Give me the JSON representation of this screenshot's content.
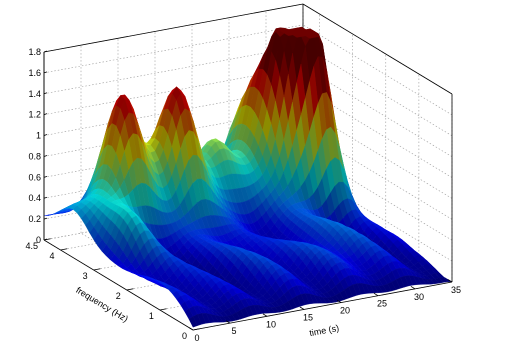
{
  "chart_data": {
    "type": "surface",
    "title": "",
    "xlabel": "time (s)",
    "ylabel": "frequency (Hz)",
    "zlabel": "",
    "xlim": [
      0,
      35
    ],
    "ylim": [
      0,
      4.5
    ],
    "zlim": [
      0,
      1.8
    ],
    "x_ticks": [
      "0",
      "5",
      "10",
      "15",
      "20",
      "25",
      "30",
      "35"
    ],
    "y_ticks": [
      "0",
      "1",
      "2",
      "3",
      "4",
      "4.5"
    ],
    "z_ticks": [
      "0",
      "0.2",
      "0.4",
      "0.6",
      "0.8",
      "1",
      "1.2",
      "1.4",
      "1.6",
      "1.8"
    ],
    "grid": true,
    "colormap": "jet",
    "peaks": [
      {
        "time": 3.0,
        "frequency": 2.6,
        "value": 0.3
      },
      {
        "time": 7.0,
        "frequency": 3.7,
        "value": 0.95
      },
      {
        "time": 10.0,
        "frequency": 4.2,
        "value": 0.45
      },
      {
        "time": 14.0,
        "frequency": 3.6,
        "value": 0.95
      },
      {
        "time": 20.0,
        "frequency": 3.9,
        "value": 0.45
      },
      {
        "time": 26.0,
        "frequency": 4.2,
        "value": 0.7
      },
      {
        "time": 31.0,
        "frequency": 3.3,
        "value": 1.5
      },
      {
        "time": 28.0,
        "frequency": 3.5,
        "value": 1.1
      }
    ]
  }
}
